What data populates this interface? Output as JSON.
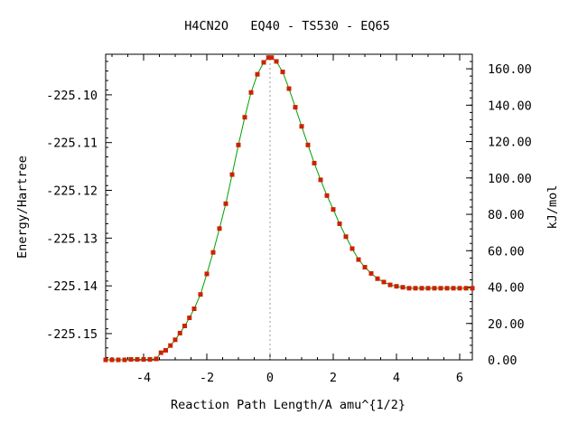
{
  "chart_data": {
    "type": "line",
    "title": "H4CN2O   EQ40 - TS530 - EQ65",
    "xlabel": "Reaction Path Length/A amu^{1/2}",
    "ylabel": "Energy/Hartree",
    "y2label": "kJ/mol",
    "xlim": [
      -5.2,
      6.4
    ],
    "ylim": [
      -225.1555,
      -225.0915
    ],
    "y2lim": [
      0.0,
      168.0
    ],
    "x_ticks": [
      -4,
      -2,
      0,
      2,
      4,
      6
    ],
    "x_tick_labels": [
      "-4",
      "-2",
      "0",
      "2",
      "4",
      "6"
    ],
    "y_ticks": [
      -225.1,
      -225.11,
      -225.12,
      -225.13,
      -225.14,
      -225.15
    ],
    "y_tick_labels": [
      "-225.10",
      "-225.11",
      "-225.12",
      "-225.13",
      "-225.14",
      "-225.15"
    ],
    "y2_ticks": [
      0,
      20,
      40,
      60,
      80,
      100,
      120,
      140,
      160
    ],
    "y2_tick_labels": [
      "0.00",
      "20.00",
      "40.00",
      "60.00",
      "80.00",
      "100.00",
      "120.00",
      "140.00",
      "160.00"
    ],
    "ts_marker_x": 0.0,
    "grid": false,
    "line_color": "#00a000",
    "marker_color": "#cc2200",
    "vline_color": "#999999",
    "series": [
      {
        "x": [
          -5.2,
          -5.0,
          -4.8,
          -4.6,
          -4.4,
          -4.2,
          -4.0,
          -3.8,
          -3.6,
          -3.45,
          -3.3,
          -3.15,
          -3.0,
          -2.85,
          -2.7,
          -2.55,
          -2.4,
          -2.2,
          -2.0,
          -1.8,
          -1.6,
          -1.4,
          -1.2,
          -1.0,
          -0.8,
          -0.6,
          -0.4,
          -0.2,
          -0.05,
          0.05,
          0.2,
          0.4,
          0.6,
          0.8,
          1.0,
          1.2,
          1.4,
          1.6,
          1.8,
          2.0,
          2.2,
          2.4,
          2.6,
          2.8,
          3.0,
          3.2,
          3.4,
          3.6,
          3.8,
          4.0,
          4.2,
          4.4,
          4.6,
          4.8,
          5.0,
          5.2,
          5.4,
          5.6,
          5.8,
          6.0,
          6.2,
          6.4
        ],
        "values": [
          -225.1555,
          -225.1555,
          -225.1555,
          -225.1555,
          -225.1554,
          -225.1554,
          -225.1554,
          -225.1554,
          -225.1553,
          -225.154,
          -225.1535,
          -225.1525,
          -225.1513,
          -225.1499,
          -225.1484,
          -225.1467,
          -225.1448,
          -225.1418,
          -225.1375,
          -225.133,
          -225.128,
          -225.1228,
          -225.1167,
          -225.1105,
          -225.1047,
          -225.0995,
          -225.0957,
          -225.0932,
          -225.0922,
          -225.0922,
          -225.093,
          -225.0952,
          -225.0987,
          -225.1026,
          -225.1066,
          -225.1105,
          -225.1143,
          -225.1178,
          -225.1211,
          -225.124,
          -225.127,
          -225.1297,
          -225.1322,
          -225.1345,
          -225.1361,
          -225.1374,
          -225.1385,
          -225.1392,
          -225.1398,
          -225.1401,
          -225.1403,
          -225.1405,
          -225.1405,
          -225.1405,
          -225.1405,
          -225.1405,
          -225.1405,
          -225.1405,
          -225.1405,
          -225.1405,
          -225.1405,
          -225.1405
        ]
      }
    ]
  }
}
